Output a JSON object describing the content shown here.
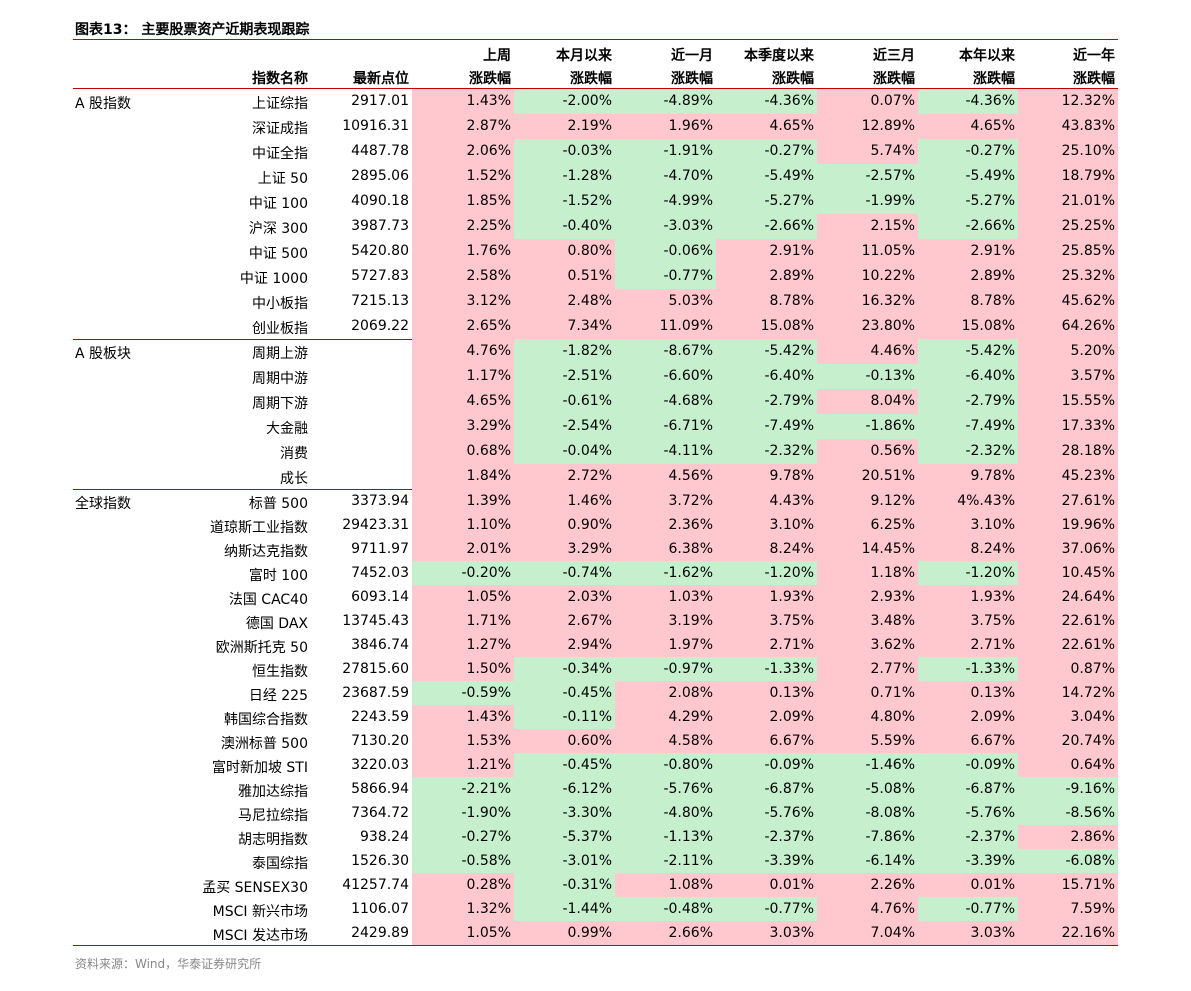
{
  "title": "图表13：  主要股票资产近期表现跟踪",
  "columns": [
    {
      "line2": "指数名称"
    },
    {
      "line2": "最新点位"
    },
    {
      "line1": "上周",
      "line2": "涨跌幅"
    },
    {
      "line1": "本月以来",
      "line2": "涨跌幅"
    },
    {
      "line1": "近一月",
      "line2": "涨跌幅"
    },
    {
      "line1": "本季度以来",
      "line2": "涨跌幅"
    },
    {
      "line1": "近三月",
      "line2": "涨跌幅"
    },
    {
      "line1": "本年以来",
      "line2": "涨跌幅"
    },
    {
      "line1": "近一年",
      "line2": "涨跌幅"
    }
  ],
  "groups": [
    {
      "label": "A 股指数",
      "rows": [
        {
          "name": "上证综指",
          "last": "2917.01",
          "changes": [
            "1.43%",
            "-2.00%",
            "-4.89%",
            "-4.36%",
            "0.07%",
            "-4.36%",
            "12.32%"
          ]
        },
        {
          "name": "深证成指",
          "last": "10916.31",
          "changes": [
            "2.87%",
            "2.19%",
            "1.96%",
            "4.65%",
            "12.89%",
            "4.65%",
            "43.83%"
          ]
        },
        {
          "name": "中证全指",
          "last": "4487.78",
          "changes": [
            "2.06%",
            "-0.03%",
            "-1.91%",
            "-0.27%",
            "5.74%",
            "-0.27%",
            "25.10%"
          ]
        },
        {
          "name": "上证 50",
          "last": "2895.06",
          "changes": [
            "1.52%",
            "-1.28%",
            "-4.70%",
            "-5.49%",
            "-2.57%",
            "-5.49%",
            "18.79%"
          ]
        },
        {
          "name": "中证 100",
          "last": "4090.18",
          "changes": [
            "1.85%",
            "-1.52%",
            "-4.99%",
            "-5.27%",
            "-1.99%",
            "-5.27%",
            "21.01%"
          ]
        },
        {
          "name": "沪深 300",
          "last": "3987.73",
          "changes": [
            "2.25%",
            "-0.40%",
            "-3.03%",
            "-2.66%",
            "2.15%",
            "-2.66%",
            "25.25%"
          ]
        },
        {
          "name": "中证 500",
          "last": "5420.80",
          "changes": [
            "1.76%",
            "0.80%",
            "-0.06%",
            "2.91%",
            "11.05%",
            "2.91%",
            "25.85%"
          ]
        },
        {
          "name": "中证 1000",
          "last": "5727.83",
          "changes": [
            "2.58%",
            "0.51%",
            "-0.77%",
            "2.89%",
            "10.22%",
            "2.89%",
            "25.32%"
          ]
        },
        {
          "name": "中小板指",
          "last": "7215.13",
          "changes": [
            "3.12%",
            "2.48%",
            "5.03%",
            "8.78%",
            "16.32%",
            "8.78%",
            "45.62%"
          ]
        },
        {
          "name": "创业板指",
          "last": "2069.22",
          "changes": [
            "2.65%",
            "7.34%",
            "11.09%",
            "15.08%",
            "23.80%",
            "15.08%",
            "64.26%"
          ]
        }
      ]
    },
    {
      "label": "A 股板块",
      "rows": [
        {
          "name": "周期上游",
          "changes": [
            "4.76%",
            "-1.82%",
            "-8.67%",
            "-5.42%",
            "4.46%",
            "-5.42%",
            "5.20%"
          ]
        },
        {
          "name": "周期中游",
          "changes": [
            "1.17%",
            "-2.51%",
            "-6.60%",
            "-6.40%",
            "-0.13%",
            "-6.40%",
            "3.57%"
          ]
        },
        {
          "name": "周期下游",
          "changes": [
            "4.65%",
            "-0.61%",
            "-4.68%",
            "-2.79%",
            "8.04%",
            "-2.79%",
            "15.55%"
          ]
        },
        {
          "name": "大金融",
          "changes": [
            "3.29%",
            "-2.54%",
            "-6.71%",
            "-7.49%",
            "-1.86%",
            "-7.49%",
            "17.33%"
          ]
        },
        {
          "name": "消费",
          "changes": [
            "0.68%",
            "-0.04%",
            "-4.11%",
            "-2.32%",
            "0.56%",
            "-2.32%",
            "28.18%"
          ]
        },
        {
          "name": "成长",
          "changes": [
            "1.84%",
            "2.72%",
            "4.56%",
            "9.78%",
            "20.51%",
            "9.78%",
            "45.23%"
          ]
        }
      ]
    },
    {
      "label": "全球指数",
      "rows": [
        {
          "name": "标普 500",
          "last": "3373.94",
          "changes": [
            "1.39%",
            "1.46%",
            "3.72%",
            "4.43%",
            "9.12%",
            "4%.43%",
            "27.61%"
          ]
        },
        {
          "name": "道琼斯工业指数",
          "last": "29423.31",
          "changes": [
            "1.10%",
            "0.90%",
            "2.36%",
            "3.10%",
            "6.25%",
            "3.10%",
            "19.96%"
          ]
        },
        {
          "name": "纳斯达克指数",
          "last": "9711.97",
          "changes": [
            "2.01%",
            "3.29%",
            "6.38%",
            "8.24%",
            "14.45%",
            "8.24%",
            "37.06%"
          ]
        },
        {
          "name": "富时 100",
          "last": "7452.03",
          "changes": [
            "-0.20%",
            "-0.74%",
            "-1.62%",
            "-1.20%",
            "1.18%",
            "-1.20%",
            "10.45%"
          ]
        },
        {
          "name": "法国 CAC40",
          "last": "6093.14",
          "changes": [
            "1.05%",
            "2.03%",
            "1.03%",
            "1.93%",
            "2.93%",
            "1.93%",
            "24.64%"
          ]
        },
        {
          "name": "德国 DAX",
          "last": "13745.43",
          "changes": [
            "1.71%",
            "2.67%",
            "3.19%",
            "3.75%",
            "3.48%",
            "3.75%",
            "22.61%"
          ]
        },
        {
          "name": "欧洲斯托克 50",
          "last": "3846.74",
          "changes": [
            "1.27%",
            "2.94%",
            "1.97%",
            "2.71%",
            "3.62%",
            "2.71%",
            "22.61%"
          ]
        },
        {
          "name": "恒生指数",
          "last": "27815.60",
          "changes": [
            "1.50%",
            "-0.34%",
            "-0.97%",
            "-1.33%",
            "2.77%",
            "-1.33%",
            "0.87%"
          ]
        },
        {
          "name": "日经 225",
          "last": "23687.59",
          "changes": [
            "-0.59%",
            "-0.45%",
            "2.08%",
            "0.13%",
            "0.71%",
            "0.13%",
            "14.72%"
          ]
        },
        {
          "name": "韩国综合指数",
          "last": "2243.59",
          "changes": [
            "1.43%",
            "-0.11%",
            "4.29%",
            "2.09%",
            "4.80%",
            "2.09%",
            "3.04%"
          ]
        },
        {
          "name": "澳洲标普 500",
          "last": "7130.20",
          "changes": [
            "1.53%",
            "0.60%",
            "4.58%",
            "6.67%",
            "5.59%",
            "6.67%",
            "20.74%"
          ]
        },
        {
          "name": "富时新加坡 STI",
          "last": "3220.03",
          "changes": [
            "1.21%",
            "-0.45%",
            "-0.80%",
            "-0.09%",
            "-1.46%",
            "-0.09%",
            "0.64%"
          ]
        },
        {
          "name": "雅加达综指",
          "last": "5866.94",
          "changes": [
            "-2.21%",
            "-6.12%",
            "-5.76%",
            "-6.87%",
            "-5.08%",
            "-6.87%",
            "-9.16%"
          ]
        },
        {
          "name": "马尼拉综指",
          "last": "7364.72",
          "changes": [
            "-1.90%",
            "-3.30%",
            "-4.80%",
            "-5.76%",
            "-8.08%",
            "-5.76%",
            "-8.56%"
          ]
        },
        {
          "name": "胡志明指数",
          "last": "938.24",
          "changes": [
            "-0.27%",
            "-5.37%",
            "-1.13%",
            "-2.37%",
            "-7.86%",
            "-2.37%",
            "2.86%"
          ]
        },
        {
          "name": "泰国综指",
          "last": "1526.30",
          "changes": [
            "-0.58%",
            "-3.01%",
            "-2.11%",
            "-3.39%",
            "-6.14%",
            "-3.39%",
            "-6.08%"
          ]
        },
        {
          "name": "孟买 SENSEX30",
          "last": "41257.74",
          "changes": [
            "0.28%",
            "-0.31%",
            "1.08%",
            "0.01%",
            "2.26%",
            "0.01%",
            "15.71%"
          ]
        },
        {
          "name": "MSCI 新兴市场",
          "last": "1106.07",
          "changes": [
            "1.32%",
            "-1.44%",
            "-0.48%",
            "-0.77%",
            "4.76%",
            "-0.77%",
            "7.59%"
          ]
        },
        {
          "name": "MSCI 发达市场",
          "last": "2429.89",
          "changes": [
            "1.05%",
            "0.99%",
            "2.66%",
            "3.03%",
            "7.04%",
            "3.03%",
            "22.16%"
          ]
        }
      ]
    }
  ],
  "source": "资料来源：Wind，华泰证券研究所"
}
